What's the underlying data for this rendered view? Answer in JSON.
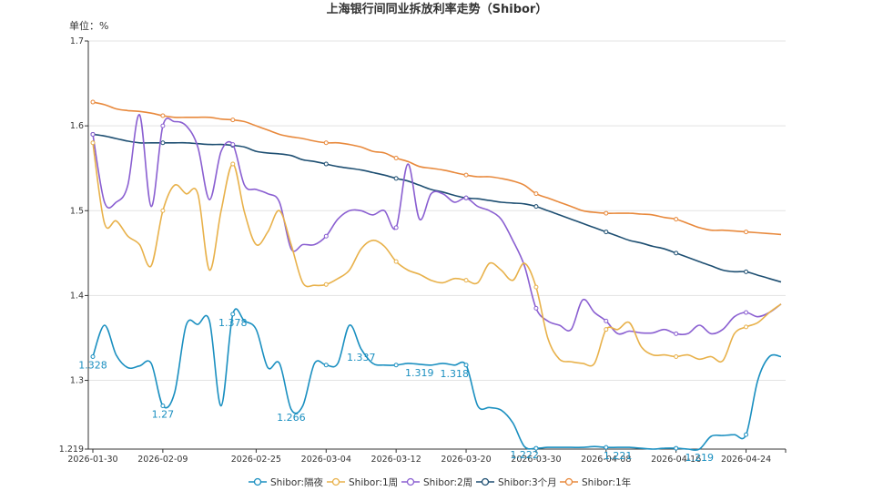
{
  "title": "上海银行间同业拆放利率走势（Shibor）",
  "unit_label": "单位：%",
  "chart_data": {
    "type": "line",
    "ylim": [
      1.219,
      1.7
    ],
    "yticks": [
      1.219,
      1.3,
      1.4,
      1.5,
      1.6,
      1.7
    ],
    "xticks": [
      "2026-01-30",
      "2026-02-09",
      "2026-02-25",
      "2026-03-04",
      "2026-03-12",
      "2026-03-20",
      "2026-03-30",
      "2026-04-08",
      "2026-04-16",
      "2026-04-24"
    ],
    "x": [
      "2026-01-30",
      "2026-02-02",
      "2026-02-03",
      "2026-02-04",
      "2026-02-05",
      "2026-02-06",
      "2026-02-09",
      "2026-02-10",
      "2026-02-11",
      "2026-02-12",
      "2026-02-13",
      "2026-02-14",
      "2026-02-15",
      "2026-02-24",
      "2026-02-25",
      "2026-02-26",
      "2026-02-27",
      "2026-02-28",
      "2026-03-02",
      "2026-03-03",
      "2026-03-04",
      "2026-03-05",
      "2026-03-06",
      "2026-03-09",
      "2026-03-10",
      "2026-03-11",
      "2026-03-12",
      "2026-03-13",
      "2026-03-16",
      "2026-03-17",
      "2026-03-18",
      "2026-03-19",
      "2026-03-20",
      "2026-03-23",
      "2026-03-24",
      "2026-03-25",
      "2026-03-26",
      "2026-03-27",
      "2026-03-30",
      "2026-03-31",
      "2026-04-01",
      "2026-04-02",
      "2026-04-03",
      "2026-04-07",
      "2026-04-08",
      "2026-04-09",
      "2026-04-10",
      "2026-04-13",
      "2026-04-14",
      "2026-04-15",
      "2026-04-16",
      "2026-04-17",
      "2026-04-20",
      "2026-04-21",
      "2026-04-22",
      "2026-04-23",
      "2026-04-24",
      "2026-04-27",
      "2026-04-28",
      "2026-04-29"
    ],
    "series": [
      {
        "name": "Shibor:隔夜",
        "color": "#1a8fc0",
        "values": [
          1.328,
          1.365,
          1.33,
          1.315,
          1.317,
          1.32,
          1.27,
          1.285,
          1.365,
          1.366,
          1.37,
          1.27,
          1.378,
          1.37,
          1.36,
          1.315,
          1.32,
          1.266,
          1.27,
          1.32,
          1.318,
          1.32,
          1.365,
          1.337,
          1.32,
          1.318,
          1.318,
          1.32,
          1.319,
          1.318,
          1.32,
          1.318,
          1.318,
          1.27,
          1.268,
          1.265,
          1.25,
          1.222,
          1.22,
          1.221,
          1.221,
          1.221,
          1.221,
          1.222,
          1.221,
          1.221,
          1.221,
          1.22,
          1.219,
          1.22,
          1.22,
          1.219,
          1.219,
          1.234,
          1.235,
          1.236,
          1.236,
          1.3,
          1.328,
          1.328
        ],
        "labels": {
          "0": "1.328",
          "6": "1.27",
          "12": "1.378",
          "17": "1.266",
          "23": "1.337",
          "28": "1.319",
          "31": "1.318",
          "37": "1.222",
          "45": "1.221",
          "52": "1.219"
        }
      },
      {
        "name": "Shibor:1周",
        "color": "#e8b14a",
        "values": [
          1.58,
          1.485,
          1.488,
          1.47,
          1.46,
          1.435,
          1.5,
          1.53,
          1.52,
          1.52,
          1.43,
          1.5,
          1.555,
          1.498,
          1.46,
          1.475,
          1.5,
          1.46,
          1.415,
          1.412,
          1.413,
          1.42,
          1.43,
          1.455,
          1.465,
          1.458,
          1.44,
          1.43,
          1.425,
          1.418,
          1.415,
          1.42,
          1.418,
          1.415,
          1.438,
          1.43,
          1.418,
          1.438,
          1.41,
          1.35,
          1.325,
          1.322,
          1.32,
          1.32,
          1.36,
          1.36,
          1.368,
          1.34,
          1.33,
          1.33,
          1.328,
          1.33,
          1.325,
          1.328,
          1.323,
          1.355,
          1.363,
          1.368,
          1.38,
          1.39
        ]
      },
      {
        "name": "Shibor:2周",
        "color": "#8a5fd1",
        "values": [
          1.59,
          1.51,
          1.51,
          1.53,
          1.613,
          1.505,
          1.6,
          1.605,
          1.6,
          1.575,
          1.513,
          1.57,
          1.578,
          1.53,
          1.525,
          1.52,
          1.51,
          1.455,
          1.46,
          1.46,
          1.47,
          1.49,
          1.5,
          1.5,
          1.495,
          1.5,
          1.48,
          1.555,
          1.49,
          1.52,
          1.52,
          1.51,
          1.515,
          1.505,
          1.5,
          1.49,
          1.465,
          1.435,
          1.385,
          1.37,
          1.365,
          1.36,
          1.395,
          1.38,
          1.37,
          1.355,
          1.358,
          1.356,
          1.356,
          1.36,
          1.355,
          1.355,
          1.365,
          1.355,
          1.36,
          1.375,
          1.38,
          1.375,
          1.38,
          1.39
        ]
      },
      {
        "name": "Shibor:3个月",
        "color": "#1e4f72",
        "values": [
          1.59,
          1.588,
          1.585,
          1.582,
          1.58,
          1.58,
          1.58,
          1.58,
          1.58,
          1.579,
          1.578,
          1.578,
          1.577,
          1.575,
          1.57,
          1.568,
          1.567,
          1.565,
          1.56,
          1.558,
          1.555,
          1.552,
          1.55,
          1.548,
          1.545,
          1.542,
          1.538,
          1.535,
          1.53,
          1.525,
          1.522,
          1.518,
          1.515,
          1.514,
          1.512,
          1.51,
          1.509,
          1.508,
          1.505,
          1.5,
          1.495,
          1.49,
          1.485,
          1.48,
          1.475,
          1.47,
          1.465,
          1.462,
          1.458,
          1.455,
          1.45,
          1.445,
          1.44,
          1.435,
          1.43,
          1.428,
          1.428,
          1.424,
          1.42,
          1.416
        ]
      },
      {
        "name": "Shibor:1年",
        "color": "#e8893c",
        "values": [
          1.628,
          1.625,
          1.62,
          1.618,
          1.617,
          1.615,
          1.612,
          1.61,
          1.61,
          1.61,
          1.61,
          1.608,
          1.607,
          1.605,
          1.6,
          1.595,
          1.59,
          1.587,
          1.585,
          1.582,
          1.58,
          1.58,
          1.578,
          1.575,
          1.57,
          1.568,
          1.562,
          1.558,
          1.552,
          1.55,
          1.548,
          1.545,
          1.542,
          1.54,
          1.54,
          1.538,
          1.535,
          1.53,
          1.52,
          1.515,
          1.51,
          1.505,
          1.5,
          1.498,
          1.497,
          1.497,
          1.497,
          1.496,
          1.495,
          1.492,
          1.49,
          1.485,
          1.48,
          1.477,
          1.477,
          1.476,
          1.475,
          1.474,
          1.473,
          1.472
        ]
      }
    ],
    "markers": [
      0,
      6,
      12,
      20,
      26,
      32,
      38,
      44,
      50,
      56
    ],
    "legend_position": "bottom-center"
  }
}
